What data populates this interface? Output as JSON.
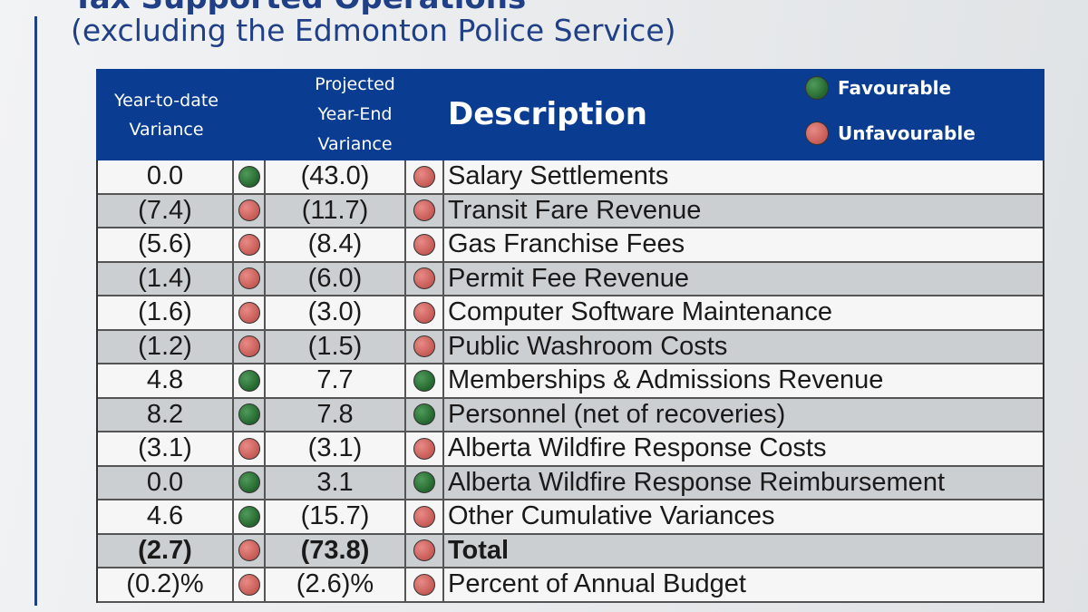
{
  "colors": {
    "header_bg": "#0a3d91",
    "favourable": "#2e7a3a",
    "unfavourable": "#d66a64",
    "title_color": "#1f3f86"
  },
  "title": "Tax Supported Operations",
  "subtitle": "(excluding the Edmonton Police Service)",
  "header": {
    "ytd_label": "Year-to-date\nVariance",
    "projected_label": "Projected\nYear-End\nVariance",
    "description_label": "Description",
    "legend": {
      "favourable": "Favourable",
      "unfavourable": "Unfavourable"
    }
  },
  "rows": [
    {
      "ytd": "0.0",
      "ytd_status": "favourable",
      "projected": "(43.0)",
      "projected_status": "unfavourable",
      "description": "Salary Settlements"
    },
    {
      "ytd": "(7.4)",
      "ytd_status": "unfavourable",
      "projected": "(11.7)",
      "projected_status": "unfavourable",
      "description": "Transit Fare Revenue"
    },
    {
      "ytd": "(5.6)",
      "ytd_status": "unfavourable",
      "projected": "(8.4)",
      "projected_status": "unfavourable",
      "description": "Gas Franchise Fees"
    },
    {
      "ytd": "(1.4)",
      "ytd_status": "unfavourable",
      "projected": "(6.0)",
      "projected_status": "unfavourable",
      "description": "Permit Fee Revenue"
    },
    {
      "ytd": "(1.6)",
      "ytd_status": "unfavourable",
      "projected": "(3.0)",
      "projected_status": "unfavourable",
      "description": "Computer Software Maintenance"
    },
    {
      "ytd": "(1.2)",
      "ytd_status": "unfavourable",
      "projected": "(1.5)",
      "projected_status": "unfavourable",
      "description": "Public Washroom Costs"
    },
    {
      "ytd": "4.8",
      "ytd_status": "favourable",
      "projected": "7.7",
      "projected_status": "favourable",
      "description": "Memberships & Admissions Revenue"
    },
    {
      "ytd": "8.2",
      "ytd_status": "favourable",
      "projected": "7.8",
      "projected_status": "favourable",
      "description": "Personnel (net of recoveries)"
    },
    {
      "ytd": "(3.1)",
      "ytd_status": "unfavourable",
      "projected": "(3.1)",
      "projected_status": "unfavourable",
      "description": "Alberta Wildfire Response Costs"
    },
    {
      "ytd": "0.0",
      "ytd_status": "favourable",
      "projected": "3.1",
      "projected_status": "favourable",
      "description": "Alberta Wildfire Response Reimbursement"
    },
    {
      "ytd": "4.6",
      "ytd_status": "favourable",
      "projected": "(15.7)",
      "projected_status": "unfavourable",
      "description": "Other Cumulative Variances"
    },
    {
      "ytd": "(2.7)",
      "ytd_status": "unfavourable",
      "projected": "(73.8)",
      "projected_status": "unfavourable",
      "description": "Total",
      "bold": true
    },
    {
      "ytd": "(0.2)%",
      "ytd_status": "unfavourable",
      "projected": "(2.6)%",
      "projected_status": "unfavourable",
      "description": "Percent of Annual Budget"
    }
  ]
}
